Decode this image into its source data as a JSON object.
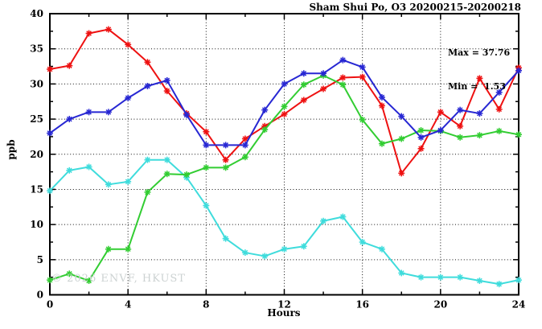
{
  "chart_data": {
    "type": "line",
    "title": "Sham Shui Po, O3 20200215-20200218",
    "xlabel": "Hours",
    "ylabel": "ppb",
    "xlim": [
      0,
      24
    ],
    "ylim": [
      0,
      40
    ],
    "grid": "dotted",
    "legend": "none",
    "ticks": {
      "x_major": 4,
      "x_minor": 2,
      "y_major": 5,
      "y_minor": 2.5
    },
    "x": [
      0,
      1,
      2,
      3,
      4,
      5,
      6,
      7,
      8,
      9,
      10,
      11,
      12,
      13,
      14,
      15,
      16,
      17,
      18,
      19,
      20,
      21,
      22,
      23,
      24
    ],
    "series": [
      {
        "name": "red",
        "color": "#ee1111",
        "values": [
          32.1,
          32.6,
          37.2,
          37.76,
          35.6,
          33.1,
          29.0,
          25.8,
          23.2,
          19.2,
          22.2,
          24.0,
          25.7,
          27.7,
          29.3,
          30.9,
          31.0,
          26.9,
          17.3,
          20.8,
          26.0,
          24.0,
          30.8,
          26.4,
          32.3
        ]
      },
      {
        "name": "cyan",
        "color": "#3fdcdc",
        "values": [
          14.8,
          17.7,
          18.2,
          15.7,
          16.1,
          19.2,
          19.2,
          16.7,
          12.7,
          8.0,
          6.0,
          5.5,
          6.5,
          6.9,
          10.5,
          11.1,
          7.5,
          6.5,
          3.1,
          2.5,
          2.5,
          2.5,
          2.0,
          1.53,
          2.1
        ]
      },
      {
        "name": "green",
        "color": "#32cd32",
        "values": [
          2.1,
          3.0,
          2.0,
          6.5,
          6.5,
          14.6,
          17.2,
          17.1,
          18.1,
          18.1,
          19.6,
          23.5,
          26.8,
          29.9,
          31.2,
          29.9,
          24.9,
          21.5,
          22.2,
          23.4,
          23.3,
          22.4,
          22.7,
          23.3,
          22.8
        ]
      },
      {
        "name": "blue",
        "color": "#2727d3",
        "values": [
          23.0,
          25.0,
          26.0,
          26.0,
          28.0,
          29.7,
          30.5,
          25.6,
          21.3,
          21.3,
          21.3,
          26.3,
          30.0,
          31.5,
          31.5,
          33.4,
          32.4,
          28.1,
          25.4,
          22.4,
          23.4,
          26.3,
          25.8,
          28.8,
          31.9
        ]
      }
    ],
    "annotations": {
      "max_label": "Max = 37.76",
      "min_label": "Min =  1.53"
    },
    "watermark": "© 2026 ENVF, HKUST"
  }
}
